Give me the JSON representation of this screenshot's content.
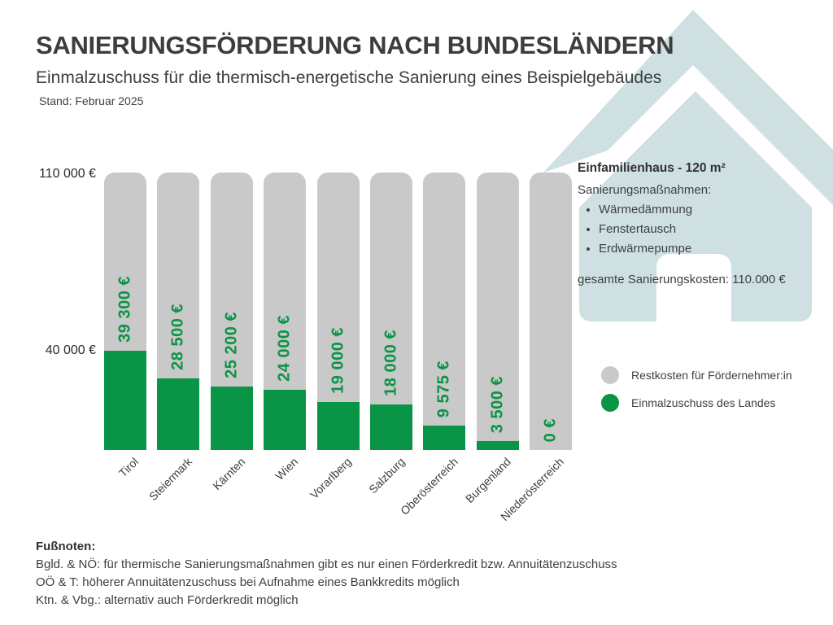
{
  "header": {
    "title": "SANIERUNGSFÖRDERUNG NACH BUNDESLÄNDERN",
    "subtitle": "Einmalzuschuss für die thermisch-energetische Sanierung eines Beispielgebäudes",
    "date_note": "Stand: Februar 2025"
  },
  "chart_data": {
    "type": "bar",
    "stacked": true,
    "title": "Sanierungsförderung nach Bundesländern",
    "xlabel": "",
    "ylabel": "",
    "ylim": [
      0,
      110000
    ],
    "grid": false,
    "legend_position": "right",
    "categories": [
      "Tirol",
      "Steiermark",
      "Kärnten",
      "Wien",
      "Vorarlberg",
      "Salzburg",
      "Oberösterreich",
      "Burgenland",
      "Niederösterreich"
    ],
    "series": [
      {
        "name": "Einmalzuschuss des Landes",
        "color": "#0a9446",
        "values": [
          39300,
          28500,
          25200,
          24000,
          19000,
          18000,
          9575,
          3500,
          0
        ]
      },
      {
        "name": "Restkosten für Fördernehmer:in",
        "color": "#c9c9c9",
        "values": [
          70700,
          81500,
          84800,
          86000,
          91000,
          92000,
          100425,
          106500,
          110000
        ]
      }
    ],
    "bar_labels": [
      "39 300 €",
      "28 500 €",
      "25 200 €",
      "24 000 €",
      "19 000 €",
      "18 000 €",
      "9 575 €",
      "3 500 €",
      "0 €"
    ],
    "total_per_bar": 110000,
    "y_ticks": [
      {
        "value": 110000,
        "label": "110 000 €"
      },
      {
        "value": 40000,
        "label": "40 000 €"
      }
    ]
  },
  "info_panel": {
    "title": "Einfamilienhaus - 120 m²",
    "measures_label": "Sanierungsmaßnahmen:",
    "bullets": [
      "Wärmedämmung",
      "Fenstertausch",
      "Erdwärmepumpe"
    ],
    "total_line": "gesamte Sanierungskosten: 110.000 €"
  },
  "legend": {
    "items": [
      {
        "label": "Restkosten für Fördernehmer:in",
        "color": "#c9c9c9"
      },
      {
        "label": "Einmalzuschuss des Landes",
        "color": "#0a9446"
      }
    ]
  },
  "footnotes": {
    "title": "Fußnoten:",
    "lines": [
      "Bgld. & NÖ: für thermische Sanierungsmaßnahmen gibt es nur einen Förderkredit bzw. Annuitätenzuschuss",
      "OÖ & T: höherer Annuitätenzuschuss bei Aufnahme eines Bankkredits möglich",
      "Ktn. & Vbg.: alternativ auch Förderkredit möglich"
    ]
  },
  "colors": {
    "grant_green": "#0a9446",
    "rest_gray": "#c9c9c9",
    "house_blue": "#cfe0e3",
    "text_dark": "#3c4043",
    "title_dark": "#3d3d3d",
    "background": "#ffffff"
  }
}
